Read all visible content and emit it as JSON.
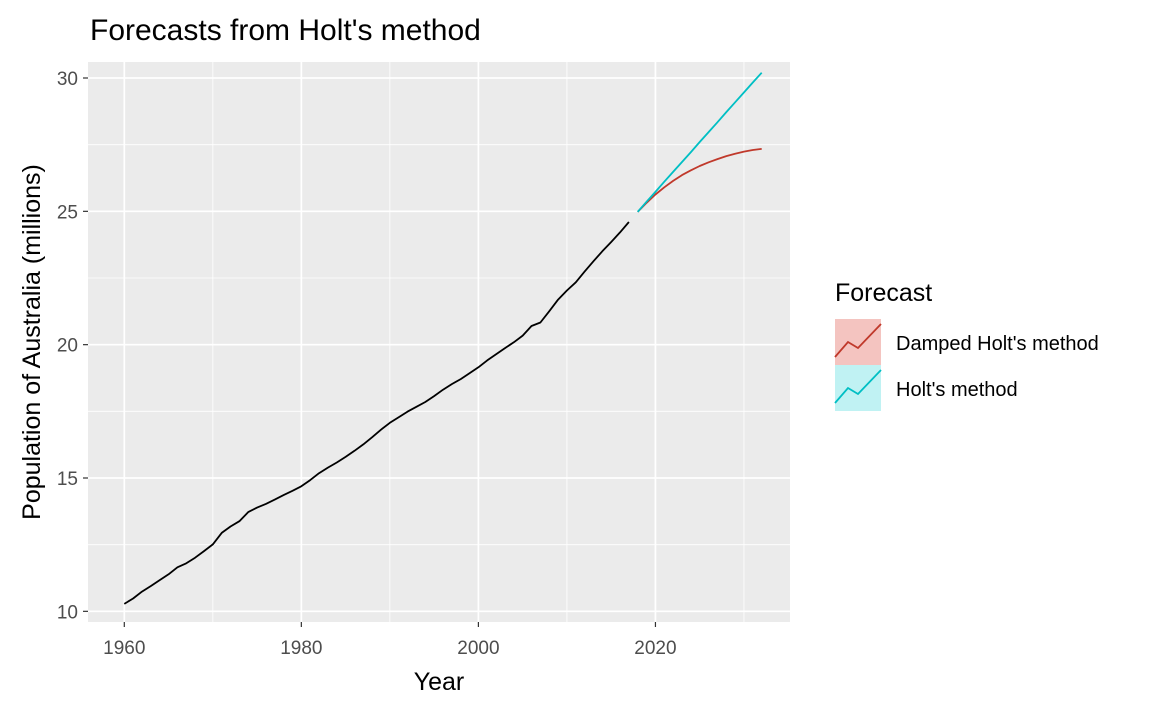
{
  "chart_data": {
    "type": "line",
    "title": "Forecasts from Holt's method",
    "xlabel": "Year",
    "ylabel": "Population of Australia (millions)",
    "xlim": [
      1955.9,
      2035.2
    ],
    "ylim": [
      9.6,
      30.6
    ],
    "x_ticks": [
      1960,
      1980,
      2000,
      2020
    ],
    "y_ticks": [
      10,
      15,
      20,
      25,
      30
    ],
    "x_tick_labels": [
      "1960",
      "1980",
      "2000",
      "2020"
    ],
    "y_tick_labels": [
      "10",
      "15",
      "20",
      "25",
      "30"
    ],
    "grid": true,
    "background": "#ebebeb",
    "legend": {
      "title": "Forecast",
      "placement": "right",
      "entries": [
        {
          "label": "Damped Holt's method",
          "color": "#c0392b",
          "fill": "#f4c4c0"
        },
        {
          "label": "Holt's method",
          "color": "#00bfc4",
          "fill": "#c0f2f3"
        }
      ]
    },
    "observed": {
      "color": "#000000",
      "x": [
        1960,
        1961,
        1962,
        1963,
        1964,
        1965,
        1966,
        1967,
        1968,
        1969,
        1970,
        1971,
        1972,
        1973,
        1974,
        1975,
        1976,
        1977,
        1978,
        1979,
        1980,
        1981,
        1982,
        1983,
        1984,
        1985,
        1986,
        1987,
        1988,
        1989,
        1990,
        1991,
        1992,
        1993,
        1994,
        1995,
        1996,
        1997,
        1998,
        1999,
        2000,
        2001,
        2002,
        2003,
        2004,
        2005,
        2006,
        2007,
        2008,
        2009,
        2010,
        2011,
        2012,
        2013,
        2014,
        2015,
        2016,
        2017
      ],
      "y": [
        10.28,
        10.48,
        10.74,
        10.95,
        11.17,
        11.39,
        11.65,
        11.8,
        12.01,
        12.26,
        12.51,
        12.94,
        13.18,
        13.38,
        13.72,
        13.89,
        14.03,
        14.19,
        14.36,
        14.52,
        14.69,
        14.92,
        15.18,
        15.39,
        15.58,
        15.79,
        16.02,
        16.26,
        16.53,
        16.81,
        17.07,
        17.28,
        17.49,
        17.67,
        17.85,
        18.07,
        18.31,
        18.52,
        18.71,
        18.93,
        19.15,
        19.41,
        19.64,
        19.87,
        20.09,
        20.34,
        20.7,
        20.83,
        21.25,
        21.69,
        22.03,
        22.34,
        22.74,
        23.13,
        23.5,
        23.85,
        24.21,
        24.6
      ]
    },
    "series": [
      {
        "name": "Damped Holt's method",
        "color": "#c0392b",
        "x": [
          2018,
          2019,
          2020,
          2021,
          2022,
          2023,
          2024,
          2025,
          2026,
          2027,
          2028,
          2029,
          2030,
          2031,
          2032
        ],
        "values": [
          24.98,
          25.32,
          25.63,
          25.9,
          26.14,
          26.36,
          26.54,
          26.7,
          26.84,
          26.96,
          27.07,
          27.16,
          27.24,
          27.3,
          27.34
        ]
      },
      {
        "name": "Holt's method",
        "color": "#00bfc4",
        "x": [
          2018,
          2019,
          2020,
          2021,
          2022,
          2023,
          2024,
          2025,
          2026,
          2027,
          2028,
          2029,
          2030,
          2031,
          2032
        ],
        "values": [
          24.98,
          25.36,
          25.73,
          26.11,
          26.48,
          26.85,
          27.22,
          27.6,
          27.97,
          28.34,
          28.72,
          29.09,
          29.46,
          29.83,
          30.2
        ]
      }
    ]
  }
}
